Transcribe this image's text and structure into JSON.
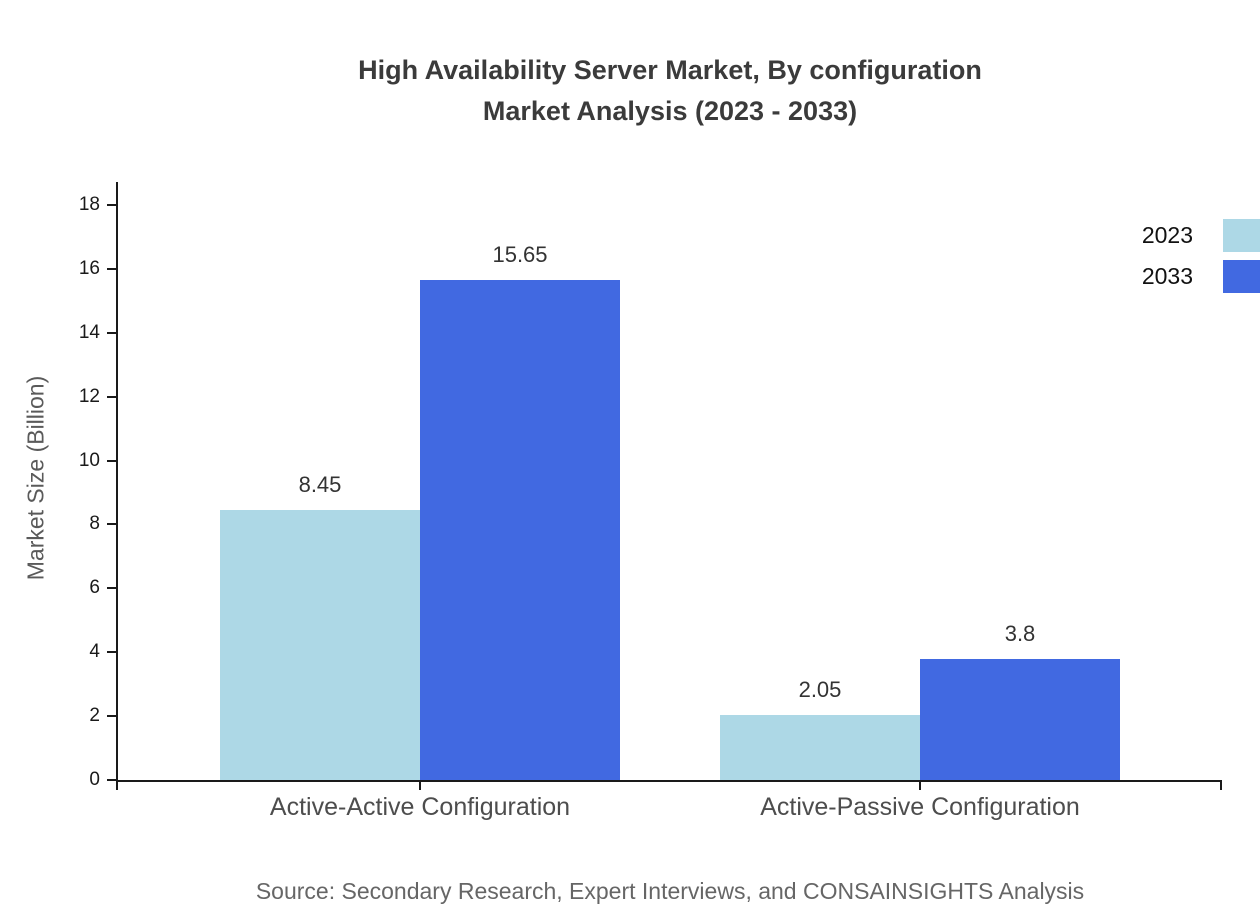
{
  "header": {
    "title_line1": "High Availability Server Market, By configuration",
    "title_line2": "Market Analysis (2023 - 2033)"
  },
  "footer": {
    "source": "Source: Secondary Research, Expert Interviews, and CONSAINSIGHTS Analysis"
  },
  "chart_data": {
    "type": "bar",
    "title": "High Availability Server Market, By configuration Market Analysis (2023 - 2033)",
    "categories": [
      "Active-Active Configuration",
      "Active-Passive Configuration"
    ],
    "series": [
      {
        "name": "2023",
        "color": "#ADD8E6",
        "values": [
          8.45,
          2.05
        ]
      },
      {
        "name": "2033",
        "color": "#4169E1",
        "values": [
          15.65,
          3.8
        ]
      }
    ],
    "value_labels": [
      "8.45",
      "15.65",
      "2.05",
      "3.8"
    ],
    "xlabel": "",
    "ylabel": "Market Size (Billion)",
    "ylim": [
      0,
      18
    ],
    "ytick_step": 2,
    "ytick_labels": [
      "0",
      "2",
      "4",
      "6",
      "8",
      "10",
      "12",
      "14",
      "16",
      "18"
    ],
    "grid": false,
    "legend_position": "top-right",
    "background": "#ffffff",
    "axis_color": "#1a1a1a"
  }
}
